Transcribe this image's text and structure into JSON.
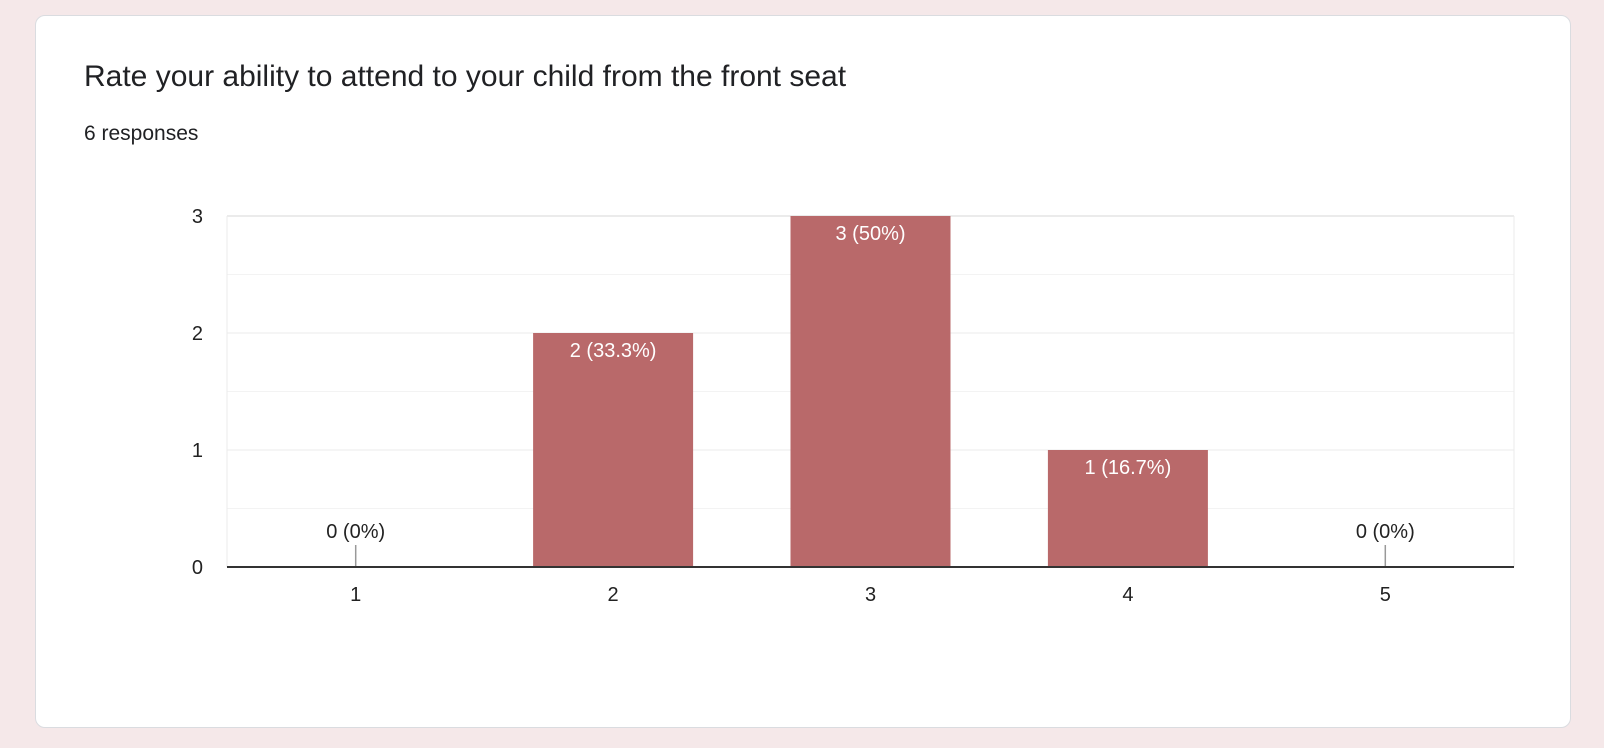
{
  "card": {
    "title": "Rate your ability to attend to your child from the front seat",
    "responses_text": "6 responses"
  },
  "colors": {
    "bar": "#b9696a",
    "page_background": "#f5e8e9",
    "gridline": "#ebebeb",
    "axis": "#333333"
  },
  "chart_data": {
    "type": "bar",
    "title": "Rate your ability to attend to your child from the front seat",
    "categories": [
      "1",
      "2",
      "3",
      "4",
      "5"
    ],
    "values": [
      0,
      2,
      3,
      1,
      0
    ],
    "data_labels": [
      "0 (0%)",
      "2 (33.3%)",
      "3 (50%)",
      "1 (16.7%)",
      "0 (0%)"
    ],
    "y_ticks": [
      "0",
      "1",
      "2",
      "3"
    ],
    "ylim": [
      0,
      3
    ],
    "minor_gridlines": true,
    "grid": true,
    "legend": "none"
  }
}
